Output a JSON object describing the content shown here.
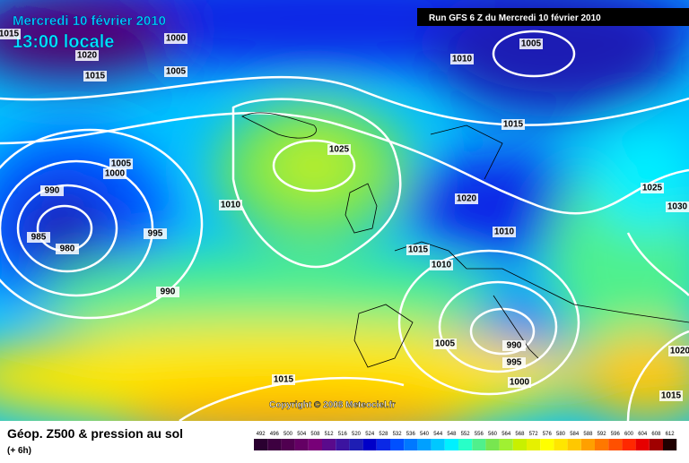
{
  "header": {
    "date": "Mercredi 10 février 2010",
    "time": "13:00 locale",
    "run": "Run GFS 6 Z du Mercredi 10 février 2010"
  },
  "copyright": "Copyright © 2008 Meteociel.fr",
  "legend": {
    "title": "Géop. Z500 & pression au sol",
    "lead": "(+ 6h)",
    "levels": [
      492,
      496,
      500,
      504,
      508,
      512,
      516,
      520,
      524,
      528,
      532,
      536,
      540,
      544,
      548,
      552,
      556,
      560,
      564,
      568,
      572,
      576,
      580,
      584,
      588,
      592,
      596,
      600,
      604,
      608,
      612
    ],
    "colors": [
      "#2a0030",
      "#3d0040",
      "#500050",
      "#640064",
      "#780078",
      "#5a0a8c",
      "#3c14a0",
      "#1e1eb4",
      "#0000c8",
      "#0a28e6",
      "#0050ff",
      "#0078ff",
      "#00a0ff",
      "#00c8ff",
      "#00f0ff",
      "#28ffc8",
      "#50f08c",
      "#78e650",
      "#a0f032",
      "#c8f000",
      "#e6f000",
      "#ffff00",
      "#ffe600",
      "#ffc800",
      "#ffa000",
      "#ff7800",
      "#ff5000",
      "#ff2800",
      "#e60000",
      "#a00000",
      "#200000"
    ]
  },
  "isobars": [
    "1015",
    "1020",
    "1000",
    "1005",
    "1015",
    "1010",
    "1005",
    "1015",
    "1005",
    "1000",
    "1025",
    "990",
    "1010",
    "985",
    "980",
    "995",
    "990",
    "1020",
    "1025",
    "1030",
    "1010",
    "1015",
    "1010",
    "1005",
    "990",
    "995",
    "1000",
    "1015",
    "1020",
    "1015"
  ]
}
